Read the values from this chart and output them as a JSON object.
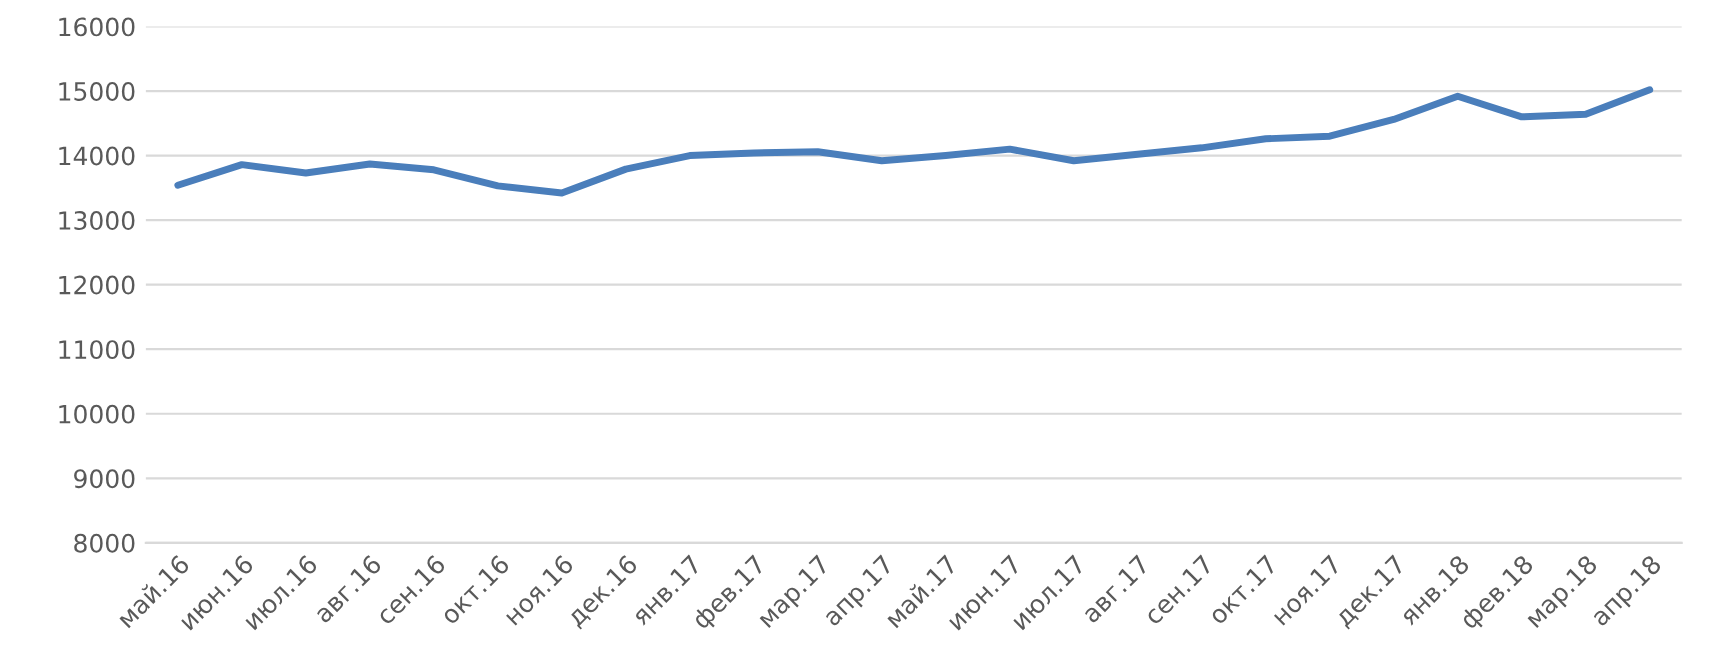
{
  "chart_data": {
    "type": "line",
    "categories": [
      "май.16",
      "июн.16",
      "июл.16",
      "авг.16",
      "сен.16",
      "окт.16",
      "ноя.16",
      "дек.16",
      "янв.17",
      "фев.17",
      "мар.17",
      "апр.17",
      "май.17",
      "июн.17",
      "июл.17",
      "авг.17",
      "сен.17",
      "окт.17",
      "ноя.17",
      "дек.17",
      "янв.18",
      "фев.18",
      "мар.18",
      "апр.18"
    ],
    "series": [
      {
        "color": "#4a7ebb",
        "values": [
          13540,
          13860,
          13730,
          13870,
          13780,
          13530,
          13420,
          13790,
          14000,
          14040,
          14060,
          13920,
          14000,
          14100,
          13920,
          14020,
          14120,
          14260,
          14300,
          14560,
          14920,
          14600,
          14640,
          15020
        ]
      }
    ],
    "ylim": [
      8000,
      16000
    ],
    "yticks": [
      8000,
      9000,
      10000,
      11000,
      12000,
      13000,
      14000,
      15000,
      16000
    ],
    "grid": "y",
    "marker": "none",
    "line_style": "solid",
    "legend": false
  }
}
